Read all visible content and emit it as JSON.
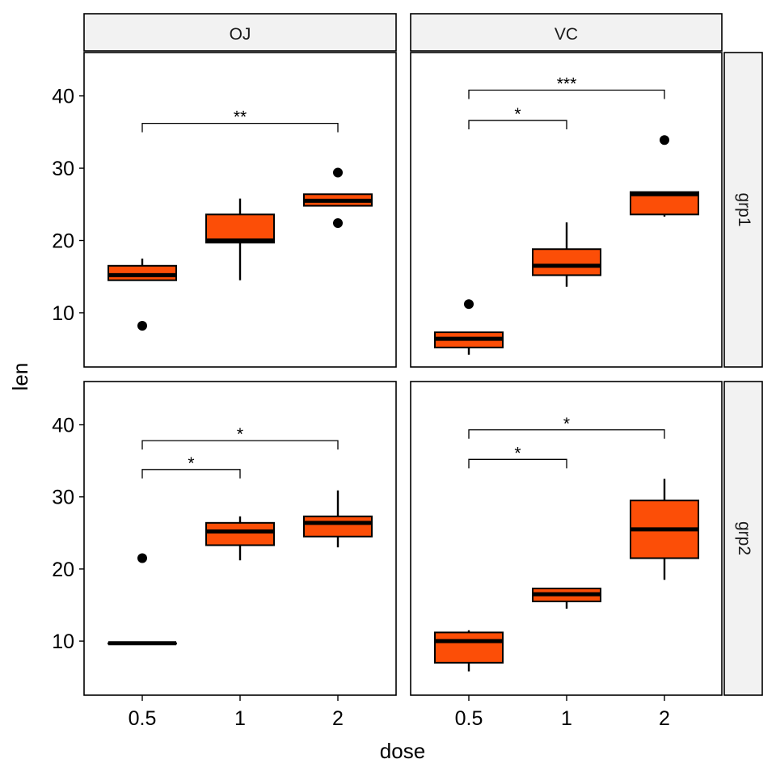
{
  "chart_data": {
    "type": "box",
    "ylabel": "len",
    "xlabel": "dose",
    "categories": [
      "0.5",
      "1",
      "2"
    ],
    "ylim": [
      2.5,
      46
    ],
    "yticks": [
      10,
      20,
      30,
      40
    ],
    "colors": {
      "box_fill": "#FC4E07",
      "strip_fill": "#F2F2F2"
    },
    "grid": false,
    "col_facets": [
      "OJ",
      "VC"
    ],
    "row_facets": [
      "grp1",
      "grp2"
    ],
    "panels": [
      {
        "col": "OJ",
        "row": "grp1",
        "boxes": [
          {
            "x": "0.5",
            "q1": 14.5,
            "median": 15.2,
            "q3": 16.5,
            "whisker_low": 14.5,
            "whisker_high": 17.5,
            "outliers": [
              8.2
            ]
          },
          {
            "x": "1",
            "q1": 19.7,
            "median": 20.0,
            "q3": 23.6,
            "whisker_low": 14.5,
            "whisker_high": 25.8,
            "outliers": []
          },
          {
            "x": "2",
            "q1": 24.8,
            "median": 25.5,
            "q3": 26.4,
            "whisker_low": 24.8,
            "whisker_high": 26.4,
            "outliers": [
              29.4,
              22.4
            ]
          }
        ],
        "comparisons": [
          {
            "from": "0.5",
            "to": "2",
            "y": 36.2,
            "label": "**"
          }
        ]
      },
      {
        "col": "VC",
        "row": "grp1",
        "boxes": [
          {
            "x": "0.5",
            "q1": 5.2,
            "median": 6.4,
            "q3": 7.3,
            "whisker_low": 4.2,
            "whisker_high": 7.3,
            "outliers": [
              11.2
            ]
          },
          {
            "x": "1",
            "q1": 15.2,
            "median": 16.5,
            "q3": 18.8,
            "whisker_low": 13.6,
            "whisker_high": 22.5,
            "outliers": []
          },
          {
            "x": "2",
            "q1": 23.6,
            "median": 26.4,
            "q3": 26.7,
            "whisker_low": 23.3,
            "whisker_high": 26.7,
            "outliers": [
              33.9
            ]
          }
        ],
        "comparisons": [
          {
            "from": "0.5",
            "to": "1",
            "y": 36.6,
            "label": "*"
          },
          {
            "from": "0.5",
            "to": "2",
            "y": 40.8,
            "label": "***"
          }
        ]
      },
      {
        "col": "OJ",
        "row": "grp2",
        "boxes": [
          {
            "x": "0.5",
            "q1": 9.7,
            "median": 9.7,
            "q3": 9.7,
            "whisker_low": 9.7,
            "whisker_high": 9.7,
            "outliers": [
              21.5
            ]
          },
          {
            "x": "1",
            "q1": 23.3,
            "median": 25.2,
            "q3": 26.4,
            "whisker_low": 21.2,
            "whisker_high": 27.3,
            "outliers": []
          },
          {
            "x": "2",
            "q1": 24.5,
            "median": 26.4,
            "q3": 27.3,
            "whisker_low": 23.0,
            "whisker_high": 30.9,
            "outliers": []
          }
        ],
        "comparisons": [
          {
            "from": "0.5",
            "to": "1",
            "y": 33.8,
            "label": "*"
          },
          {
            "from": "0.5",
            "to": "2",
            "y": 37.8,
            "label": "*"
          }
        ]
      },
      {
        "col": "VC",
        "row": "grp2",
        "boxes": [
          {
            "x": "0.5",
            "q1": 7.0,
            "median": 10.0,
            "q3": 11.2,
            "whisker_low": 5.8,
            "whisker_high": 11.5,
            "outliers": []
          },
          {
            "x": "1",
            "q1": 15.5,
            "median": 16.5,
            "q3": 17.3,
            "whisker_low": 14.5,
            "whisker_high": 17.3,
            "outliers": []
          },
          {
            "x": "2",
            "q1": 21.5,
            "median": 25.5,
            "q3": 29.5,
            "whisker_low": 18.5,
            "whisker_high": 32.5,
            "outliers": []
          }
        ],
        "comparisons": [
          {
            "from": "0.5",
            "to": "1",
            "y": 35.2,
            "label": "*"
          },
          {
            "from": "0.5",
            "to": "2",
            "y": 39.3,
            "label": "*"
          }
        ]
      }
    ]
  }
}
